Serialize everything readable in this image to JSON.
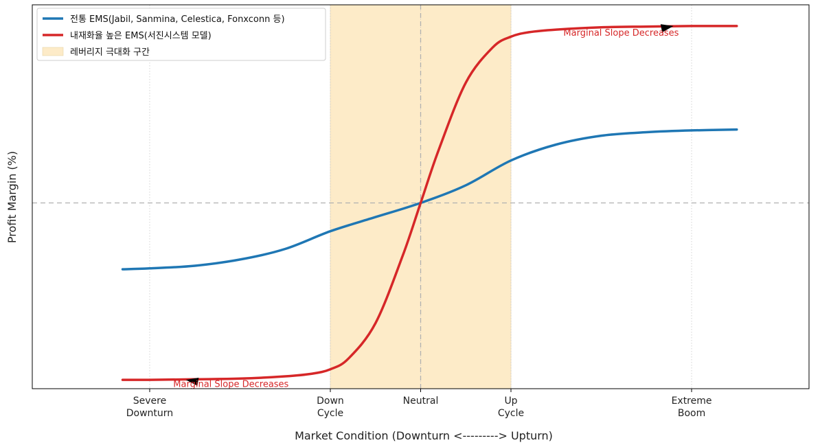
{
  "chart_data": {
    "type": "line",
    "xlabel": "Market Condition (Downturn <---------> Upturn)",
    "ylabel": "Profit Margin (%)",
    "xlim": [
      -4.3,
      4.3
    ],
    "ylim": [
      -1.05,
      1.12
    ],
    "x_ticks": [
      {
        "x": -3.0,
        "line1": "Severe",
        "line2": "Downturn"
      },
      {
        "x": -1.0,
        "line1": "Down",
        "line2": "Cycle"
      },
      {
        "x": 0.0,
        "line1": "Neutral",
        "line2": ""
      },
      {
        "x": 1.0,
        "line1": "Up",
        "line2": "Cycle"
      },
      {
        "x": 3.0,
        "line1": "Extreme",
        "line2": "Boom"
      }
    ],
    "grid": "vertical dotted at x ticks",
    "reference_line_y": 0,
    "reference_line_x": 0,
    "shaded_region": {
      "label": "레버리지 극대화 구간",
      "x_range": [
        -1,
        1
      ],
      "color": "#fdebc8"
    },
    "series": [
      {
        "name": "전통 EMS(Jabil, Sanmina, Celestica, Fonxconn 등)",
        "color": "#1f77b4",
        "x": [
          -3.3,
          -3.0,
          -2.5,
          -2.0,
          -1.5,
          -1.0,
          -0.5,
          0.0,
          0.5,
          1.0,
          1.5,
          2.0,
          2.5,
          3.0,
          3.5
        ],
        "y": [
          -0.375,
          -0.37,
          -0.355,
          -0.32,
          -0.26,
          -0.16,
          -0.08,
          0.0,
          0.1,
          0.24,
          0.33,
          0.38,
          0.4,
          0.41,
          0.415
        ]
      },
      {
        "name": "내재화율 높은 EMS(서진시스템 모델)",
        "color": "#d62728",
        "x": [
          -3.3,
          -3.0,
          -2.5,
          -2.0,
          -1.5,
          -1.2,
          -1.0,
          -0.8,
          -0.5,
          -0.2,
          0.0,
          0.2,
          0.5,
          0.8,
          1.0,
          1.2,
          1.5,
          2.0,
          2.5,
          3.0,
          3.5
        ],
        "y": [
          -1.0,
          -1.0,
          -0.997,
          -0.993,
          -0.98,
          -0.965,
          -0.94,
          -0.88,
          -0.68,
          -0.3,
          0.0,
          0.3,
          0.68,
          0.88,
          0.94,
          0.965,
          0.98,
          0.993,
          0.997,
          1.0,
          1.0
        ]
      }
    ],
    "annotations": [
      {
        "text": "Marginal Slope Decreases",
        "x": -2.1,
        "y": -1.04,
        "arrow_to": [
          -2.6,
          -1.0
        ],
        "color": "#d62728"
      },
      {
        "text": "Marginal Slope Decreases",
        "x": 2.22,
        "y": 0.945,
        "arrow_to": [
          2.8,
          1.0
        ],
        "color": "#d62728"
      }
    ],
    "legend_placement": "top-left"
  }
}
